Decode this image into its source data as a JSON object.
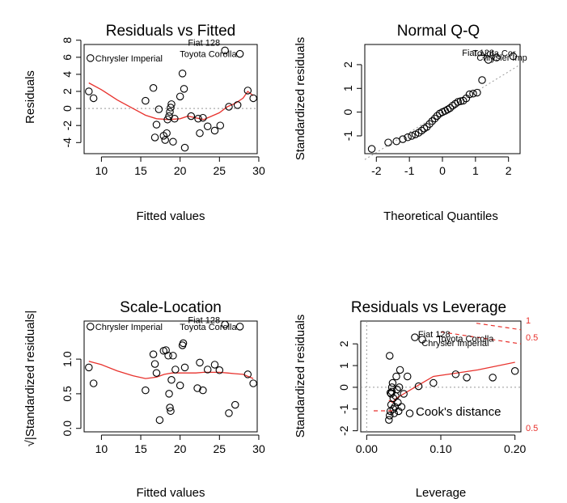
{
  "chart_data": [
    {
      "type": "scatter",
      "title": "Residuals vs Fitted",
      "xlabel": "Fitted values",
      "ylabel": "Residuals",
      "xlim": [
        7.8,
        29.8
      ],
      "ylim": [
        -5.3,
        7.5
      ],
      "xticks": [
        "10",
        "15",
        "20",
        "25",
        "30"
      ],
      "yticks": [
        "-4",
        "-2",
        "0",
        "2",
        "4",
        "6",
        "8"
      ],
      "reference_line": {
        "y": 0,
        "style": "dotted"
      },
      "smooth_color": "#e8322d",
      "points": [
        [
          8.4,
          2.0
        ],
        [
          9.0,
          1.2
        ],
        [
          8.6,
          5.9
        ],
        [
          15.6,
          0.9
        ],
        [
          16.6,
          2.4
        ],
        [
          16.8,
          -3.4
        ],
        [
          17.0,
          -1.9
        ],
        [
          17.3,
          -0.1
        ],
        [
          17.9,
          -3.2
        ],
        [
          18.1,
          -3.7
        ],
        [
          18.3,
          -2.9
        ],
        [
          18.4,
          -1.3
        ],
        [
          18.6,
          -0.9
        ],
        [
          18.7,
          -0.4
        ],
        [
          18.8,
          0.1
        ],
        [
          18.9,
          0.5
        ],
        [
          19.1,
          -3.9
        ],
        [
          19.3,
          -1.2
        ],
        [
          20.0,
          1.4
        ],
        [
          20.3,
          4.1
        ],
        [
          20.5,
          2.3
        ],
        [
          20.6,
          -4.6
        ],
        [
          21.4,
          -0.9
        ],
        [
          22.3,
          -1.2
        ],
        [
          22.5,
          -2.9
        ],
        [
          22.9,
          -1.1
        ],
        [
          23.5,
          -2.1
        ],
        [
          24.4,
          -2.6
        ],
        [
          25.1,
          -2.0
        ],
        [
          25.7,
          6.8
        ],
        [
          26.2,
          0.2
        ],
        [
          27.3,
          0.4
        ],
        [
          27.6,
          6.4
        ],
        [
          28.6,
          2.1
        ],
        [
          29.3,
          1.2
        ]
      ],
      "smooth": [
        [
          8.4,
          3.0
        ],
        [
          10.0,
          2.2
        ],
        [
          12.0,
          1.0
        ],
        [
          14.0,
          0.0
        ],
        [
          15.6,
          -0.8
        ],
        [
          17.0,
          -1.2
        ],
        [
          18.5,
          -1.3
        ],
        [
          20.0,
          -1.2
        ],
        [
          21.0,
          -0.9
        ],
        [
          22.0,
          -1.1
        ],
        [
          23.0,
          -1.3
        ],
        [
          24.0,
          -0.9
        ],
        [
          25.0,
          -0.5
        ],
        [
          26.0,
          0.2
        ],
        [
          27.0,
          0.6
        ],
        [
          28.0,
          1.2
        ],
        [
          28.6,
          2.0
        ],
        [
          29.3,
          1.5
        ]
      ],
      "annotations": [
        {
          "text": "Fiat 128",
          "x": 25.7,
          "y": 6.8
        },
        {
          "text": "Toyota Corolla",
          "x": 27.6,
          "y": 6.4
        },
        {
          "text": "Chrysler Imperial",
          "x": 8.6,
          "y": 5.9
        }
      ]
    },
    {
      "type": "scatter",
      "title": "Normal Q-Q",
      "xlabel": "Theoretical Quantiles",
      "ylabel": "Standardized residuals",
      "xlim": [
        -2.35,
        2.35
      ],
      "ylim": [
        -1.75,
        2.85
      ],
      "xticks": [
        "-2",
        "-1",
        "0",
        "1",
        "2"
      ],
      "yticks": [
        "-1",
        "0",
        "1",
        "2"
      ],
      "qq_line_style": "dotted",
      "points": [
        [
          -2.14,
          -1.55
        ],
        [
          -1.64,
          -1.28
        ],
        [
          -1.39,
          -1.23
        ],
        [
          -1.2,
          -1.14
        ],
        [
          -1.05,
          -1.06
        ],
        [
          -0.93,
          -1.0
        ],
        [
          -0.82,
          -0.94
        ],
        [
          -0.72,
          -0.87
        ],
        [
          -0.63,
          -0.78
        ],
        [
          -0.55,
          -0.69
        ],
        [
          -0.47,
          -0.62
        ],
        [
          -0.39,
          -0.5
        ],
        [
          -0.31,
          -0.38
        ],
        [
          -0.23,
          -0.27
        ],
        [
          -0.16,
          -0.16
        ],
        [
          -0.08,
          -0.06
        ],
        [
          0.0,
          0.0
        ],
        [
          0.08,
          0.05
        ],
        [
          0.16,
          0.11
        ],
        [
          0.23,
          0.17
        ],
        [
          0.31,
          0.27
        ],
        [
          0.39,
          0.35
        ],
        [
          0.47,
          0.43
        ],
        [
          0.55,
          0.46
        ],
        [
          0.63,
          0.48
        ],
        [
          0.72,
          0.58
        ],
        [
          0.82,
          0.75
        ],
        [
          0.93,
          0.78
        ],
        [
          1.05,
          0.82
        ],
        [
          1.2,
          1.35
        ],
        [
          1.39,
          2.2
        ],
        [
          1.64,
          2.3
        ],
        [
          2.14,
          2.35
        ]
      ],
      "annotations": [
        {
          "text": "Fiat 128",
          "x": 1.64,
          "y": 2.3
        },
        {
          "text": "Chrysler Imp",
          "x": 2.14,
          "y": 2.3
        },
        {
          "text": "Toyota Cor",
          "x": 2.14,
          "y": 2.35
        }
      ]
    },
    {
      "type": "scatter",
      "title": "Scale-Location",
      "xlabel": "Fitted values",
      "ylabel": "√|Standardized residuals|",
      "xlim": [
        7.8,
        29.8
      ],
      "ylim": [
        -0.05,
        1.55
      ],
      "xticks": [
        "10",
        "15",
        "20",
        "25",
        "30"
      ],
      "yticks": [
        "0.0",
        "0.5",
        "1.0"
      ],
      "smooth_color": "#e8322d",
      "points": [
        [
          8.4,
          0.88
        ],
        [
          9.0,
          0.65
        ],
        [
          8.6,
          1.47
        ],
        [
          15.6,
          0.55
        ],
        [
          16.6,
          1.07
        ],
        [
          16.8,
          0.93
        ],
        [
          17.0,
          0.8
        ],
        [
          17.4,
          0.12
        ],
        [
          17.9,
          1.12
        ],
        [
          18.2,
          1.13
        ],
        [
          18.5,
          1.05
        ],
        [
          18.6,
          0.5
        ],
        [
          18.7,
          0.3
        ],
        [
          18.8,
          0.25
        ],
        [
          18.9,
          0.7
        ],
        [
          19.1,
          1.05
        ],
        [
          19.4,
          0.85
        ],
        [
          20.0,
          0.62
        ],
        [
          20.3,
          1.2
        ],
        [
          20.4,
          1.23
        ],
        [
          20.6,
          0.88
        ],
        [
          22.2,
          0.58
        ],
        [
          22.5,
          0.95
        ],
        [
          22.9,
          0.55
        ],
        [
          23.5,
          0.85
        ],
        [
          24.4,
          0.92
        ],
        [
          25.0,
          0.84
        ],
        [
          25.7,
          1.5
        ],
        [
          26.2,
          0.22
        ],
        [
          27.0,
          0.34
        ],
        [
          27.6,
          1.47
        ],
        [
          28.6,
          0.78
        ],
        [
          29.3,
          0.65
        ]
      ],
      "smooth": [
        [
          8.4,
          0.97
        ],
        [
          10.0,
          0.92
        ],
        [
          12.0,
          0.83
        ],
        [
          14.0,
          0.76
        ],
        [
          15.6,
          0.72
        ],
        [
          17.0,
          0.74
        ],
        [
          18.0,
          0.78
        ],
        [
          19.0,
          0.8
        ],
        [
          20.0,
          0.8
        ],
        [
          21.0,
          0.8
        ],
        [
          22.0,
          0.8
        ],
        [
          23.0,
          0.81
        ],
        [
          24.0,
          0.81
        ],
        [
          25.0,
          0.81
        ],
        [
          26.0,
          0.8
        ],
        [
          27.0,
          0.79
        ],
        [
          28.0,
          0.78
        ],
        [
          29.3,
          0.72
        ]
      ],
      "annotations": [
        {
          "text": "Chrysler Imperial",
          "x": 8.6,
          "y": 1.47
        },
        {
          "text": "Toyota Corolla",
          "x": 27.6,
          "y": 1.47
        },
        {
          "text": "Fiat 128",
          "x": 25.7,
          "y": 1.5
        }
      ]
    },
    {
      "type": "scatter",
      "title": "Residuals vs Leverage",
      "xlabel": "Leverage",
      "ylabel": "Standardized residuals",
      "xlim": [
        -0.008,
        0.208
      ],
      "ylim": [
        -2.05,
        3.05
      ],
      "xticks": [
        "0.00",
        "0.10",
        "0.20"
      ],
      "yticks": [
        "-2",
        "-1",
        "0",
        "1",
        "2"
      ],
      "smooth_color": "#e8322d",
      "points": [
        [
          0.03,
          -1.5
        ],
        [
          0.031,
          -1.3
        ],
        [
          0.032,
          -1.1
        ],
        [
          0.033,
          -0.8
        ],
        [
          0.033,
          -0.3
        ],
        [
          0.034,
          -0.2
        ],
        [
          0.034,
          0.0
        ],
        [
          0.035,
          0.2
        ],
        [
          0.036,
          -0.5
        ],
        [
          0.036,
          -1.0
        ],
        [
          0.037,
          -1.2
        ],
        [
          0.038,
          -0.9
        ],
        [
          0.039,
          -0.4
        ],
        [
          0.04,
          0.5
        ],
        [
          0.041,
          -0.1
        ],
        [
          0.042,
          -0.7
        ],
        [
          0.043,
          -1.1
        ],
        [
          0.044,
          0.0
        ],
        [
          0.045,
          0.8
        ],
        [
          0.047,
          -0.9
        ],
        [
          0.05,
          -0.3
        ],
        [
          0.055,
          0.5
        ],
        [
          0.058,
          -1.2
        ],
        [
          0.065,
          2.3
        ],
        [
          0.07,
          0.05
        ],
        [
          0.075,
          2.2
        ],
        [
          0.09,
          0.2
        ],
        [
          0.12,
          0.6
        ],
        [
          0.135,
          0.45
        ],
        [
          0.17,
          0.45
        ],
        [
          0.2,
          0.75
        ],
        [
          0.032,
          -0.25
        ],
        [
          0.031,
          1.45
        ]
      ],
      "smooth": [
        [
          0.03,
          -0.6
        ],
        [
          0.035,
          -0.7
        ],
        [
          0.04,
          -0.5
        ],
        [
          0.05,
          -0.3
        ],
        [
          0.06,
          -0.1
        ],
        [
          0.07,
          0.1
        ],
        [
          0.09,
          0.5
        ],
        [
          0.12,
          0.65
        ],
        [
          0.15,
          0.8
        ],
        [
          0.2,
          1.15
        ]
      ],
      "cooks_contours": [
        0.5,
        1
      ],
      "annotations": [
        {
          "text": "Fiat 128",
          "x": 0.065,
          "y": 2.3
        },
        {
          "text": "Toyota Corolla",
          "x": 0.075,
          "y": 2.25
        },
        {
          "text": "Chrysler Imperial",
          "x": 0.072,
          "y": 2.2
        }
      ],
      "legend": "Cook's distance",
      "contour_labels": [
        "1",
        "0.5",
        "0.5"
      ]
    }
  ]
}
